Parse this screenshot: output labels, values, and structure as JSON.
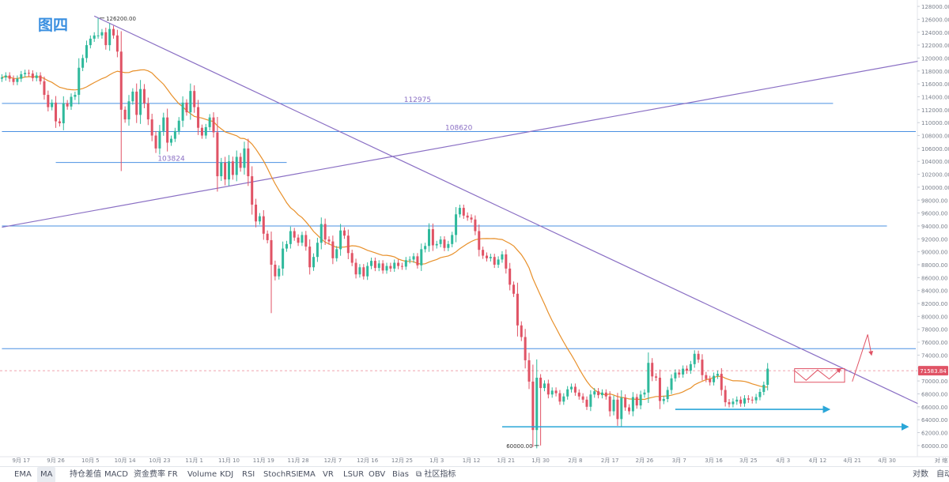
{
  "figure_label": "图四",
  "colors": {
    "up": "#2fb99c",
    "down": "#e05365",
    "ma": "#e8902a",
    "hline": "#4a90e2",
    "trend": "#8a6fc4",
    "current": "#e05365",
    "title": "#3a8fe0",
    "arrow": "#2aa6d8"
  },
  "toolbar": {
    "left_items": [
      "EMA",
      "MA",
      "持仓差值",
      "MACD",
      "资金费率",
      "FR",
      "Volume",
      "KDJ",
      "RSI",
      "StochRSI",
      "EMA",
      "VR",
      "LSUR",
      "OBV",
      "Bias",
      "社区指标"
    ],
    "selected": "MA",
    "right_items": [
      "对数",
      "自动"
    ],
    "axis_corner": "对 缩"
  },
  "chart_data": {
    "type": "candlestick",
    "title": "",
    "xlabel": "",
    "ylabel": "",
    "ylim": [
      59000,
      128500
    ],
    "y_ticks": [
      60000,
      62000,
      64000,
      66000,
      68000,
      70000,
      72000,
      74000,
      76000,
      78000,
      80000,
      82000,
      84000,
      86000,
      88000,
      90000,
      92000,
      94000,
      96000,
      98000,
      100000,
      102000,
      104000,
      106000,
      108000,
      110000,
      112000,
      114000,
      116000,
      118000,
      120000,
      122000,
      124000,
      126000,
      128000
    ],
    "y_tick_labels": [
      "60000.00",
      "62000.00",
      "64000.00",
      "66000.00",
      "68000.00",
      "70000.00",
      "72000.00",
      "74000.00",
      "76000.00",
      "78000.00",
      "80000.00",
      "82000.00",
      "84000.00",
      "86000.00",
      "88000.00",
      "90000.00",
      "92000.00",
      "94000.00",
      "96000.00",
      "98000.00",
      "100000.00",
      "102000.00",
      "104000.00",
      "106000.00",
      "108000.00",
      "110000.00",
      "112000.00",
      "114000.00",
      "116000.00",
      "118000.00",
      "120000.00",
      "122000.00",
      "124000.00",
      "126000.00",
      "128000.00"
    ],
    "x_ticks": [
      {
        "label": "9月 17",
        "i": 5
      },
      {
        "label": "9月 26",
        "i": 14
      },
      {
        "label": "10月 5",
        "i": 23
      },
      {
        "label": "10月 14",
        "i": 32
      },
      {
        "label": "10月 23",
        "i": 41
      },
      {
        "label": "11月 1",
        "i": 50
      },
      {
        "label": "11月 10",
        "i": 59
      },
      {
        "label": "11月 19",
        "i": 68
      },
      {
        "label": "11月 28",
        "i": 77
      },
      {
        "label": "12月 7",
        "i": 86
      },
      {
        "label": "12月 16",
        "i": 95
      },
      {
        "label": "12月 25",
        "i": 104
      },
      {
        "label": "1月 3",
        "i": 113
      },
      {
        "label": "1月 12",
        "i": 122
      },
      {
        "label": "1月 21",
        "i": 131
      },
      {
        "label": "1月 30",
        "i": 140
      },
      {
        "label": "2月 8",
        "i": 149
      },
      {
        "label": "2月 17",
        "i": 158
      },
      {
        "label": "2月 26",
        "i": 167
      },
      {
        "label": "3月 7",
        "i": 176
      },
      {
        "label": "3月 16",
        "i": 185
      },
      {
        "label": "3月 25",
        "i": 194
      },
      {
        "label": "4月 3",
        "i": 203
      },
      {
        "label": "4月 12",
        "i": 212
      },
      {
        "label": "4月 21",
        "i": 221
      },
      {
        "label": "4月 30",
        "i": 230
      }
    ],
    "x_count": 238,
    "candles_start": 0,
    "closes": [
      117000,
      117300,
      116800,
      116300,
      116800,
      117500,
      117700,
      117600,
      116900,
      117300,
      116400,
      114300,
      112400,
      113100,
      110200,
      109900,
      113000,
      112500,
      114000,
      114300,
      118500,
      120000,
      122000,
      123000,
      123500,
      123500,
      124000,
      122000,
      124500,
      123500,
      121000,
      112000,
      110500,
      113300,
      114800,
      111200,
      115200,
      113000,
      110500,
      108000,
      106000,
      108700,
      110800,
      106900,
      107500,
      108700,
      110300,
      113100,
      111600,
      114900,
      112400,
      109200,
      108000,
      109300,
      110800,
      108500,
      101700,
      103800,
      101200,
      104000,
      101900,
      104700,
      103000,
      106000,
      101700,
      97300,
      94700,
      95500,
      92800,
      91800,
      88000,
      86200,
      87400,
      90500,
      91200,
      93200,
      92200,
      91400,
      92600,
      90800,
      87600,
      89200,
      91400,
      94300,
      91900,
      91600,
      89000,
      90400,
      93300,
      92500,
      89800,
      88300,
      86500,
      87600,
      86200,
      87800,
      88600,
      87500,
      88200,
      87100,
      87800,
      87400,
      88300,
      87800,
      87700,
      88700,
      88800,
      89300,
      87900,
      90400,
      90900,
      93500,
      91000,
      91200,
      91900,
      90600,
      91200,
      92600,
      95800,
      96800,
      95600,
      95300,
      95000,
      93200,
      90300,
      89400,
      89000,
      89200,
      88000,
      88800,
      89600,
      87400,
      84900,
      83500,
      78600,
      76800,
      73200,
      69900,
      62400,
      70500,
      68900,
      69600,
      67900,
      68500,
      68100,
      66800,
      67600,
      68700,
      69100,
      68200,
      67600,
      67100,
      66000,
      67900,
      68400,
      67800,
      68200,
      67600,
      65300,
      67100,
      64100,
      67400,
      65900,
      65300,
      67500,
      66200,
      67900,
      68200,
      72800,
      70700,
      70500,
      66900,
      67200,
      68600,
      70400,
      71300,
      71000,
      71900,
      71600,
      72600,
      74200,
      73300,
      70900,
      70300,
      69800,
      70800,
      71100,
      68600,
      66700,
      66400,
      66800,
      67100,
      66500,
      67300,
      67100,
      67000,
      67500,
      68300,
      69400,
      71900
    ],
    "opens": [
      116800,
      117000,
      117300,
      116800,
      116300,
      116800,
      117500,
      117700,
      117600,
      116900,
      117300,
      116400,
      114300,
      112400,
      113100,
      110200,
      109900,
      113000,
      112500,
      114000,
      114300,
      118500,
      120000,
      122000,
      123000,
      123500,
      123500,
      124000,
      122000,
      124500,
      123500,
      121000,
      112000,
      110500,
      113300,
      114800,
      111200,
      115200,
      113000,
      110500,
      108000,
      106000,
      108700,
      110800,
      106900,
      107500,
      108700,
      110300,
      113100,
      111600,
      114900,
      112400,
      109200,
      108000,
      109300,
      110800,
      108500,
      101700,
      103800,
      101200,
      104000,
      101900,
      104700,
      103000,
      106000,
      101700,
      97300,
      94700,
      95500,
      92800,
      91800,
      88000,
      86200,
      87400,
      90500,
      91200,
      93200,
      92200,
      91400,
      92600,
      90800,
      87600,
      89200,
      91400,
      94300,
      91900,
      91600,
      89000,
      90400,
      93300,
      92500,
      89800,
      88300,
      86500,
      87600,
      86200,
      87800,
      88600,
      87500,
      88200,
      87100,
      87800,
      87400,
      88300,
      87800,
      87700,
      88700,
      88800,
      89300,
      87900,
      90400,
      90900,
      93500,
      91000,
      91200,
      91900,
      90600,
      91200,
      92600,
      95800,
      96800,
      95600,
      95300,
      95000,
      93200,
      90300,
      89400,
      89000,
      89200,
      88000,
      88800,
      89600,
      87400,
      84900,
      83500,
      78600,
      76800,
      73200,
      69900,
      62400,
      70500,
      68900,
      69600,
      67900,
      68500,
      68100,
      66800,
      67600,
      68700,
      69100,
      68200,
      67600,
      67100,
      66000,
      67900,
      68400,
      67800,
      68200,
      67600,
      65300,
      67100,
      64100,
      67400,
      65900,
      65300,
      67500,
      66200,
      67900,
      68200,
      72800,
      70700,
      70500,
      66900,
      67200,
      68600,
      70400,
      71300,
      71000,
      71900,
      71600,
      72600,
      74200,
      73300,
      70900,
      70300,
      69800,
      70800,
      71100,
      68600,
      66700,
      66400,
      66800,
      67100,
      66500,
      67300,
      67100,
      67000,
      67500,
      68300,
      69400
    ],
    "extremes": {
      "high": 126200,
      "high_index": 25,
      "low": 60000,
      "low_index": 140
    },
    "ma_label": "MA",
    "horizontal_levels": [
      {
        "value": 112975,
        "label": "112975",
        "from_index": 0,
        "to_index": 216
      },
      {
        "value": 108620,
        "label": "108620",
        "from_index": 0,
        "to_index": 238
      },
      {
        "value": 103824,
        "label": "103824",
        "from_index": 14,
        "to_index": 74
      },
      {
        "value": 94000,
        "label": "",
        "from_index": 0,
        "to_index": 230
      },
      {
        "value": 75000,
        "label": "",
        "from_index": 0,
        "to_index": 238
      }
    ],
    "trendlines": [
      {
        "name": "",
        "from": {
          "i": 24,
          "v": 126500
        },
        "to": {
          "i": 238,
          "v": 66500
        }
      },
      {
        "name": "",
        "from": {
          "i": 0,
          "v": 93800
        },
        "to": {
          "i": 238,
          "v": 119500
        }
      }
    ],
    "support_arrows": [
      {
        "value": 65600,
        "from_index": 175,
        "to_index": 215
      },
      {
        "value": 62900,
        "from_index": 130,
        "to_index": 238
      }
    ],
    "current_price": 71583.84,
    "current_price_label": "71583.84",
    "projection_box": {
      "from_index": 206,
      "to_index": 219,
      "low": 69800,
      "high": 71900
    },
    "projection_path": [
      {
        "i": 206,
        "v": 71600
      },
      {
        "i": 209,
        "v": 70100
      },
      {
        "i": 212,
        "v": 71700
      },
      {
        "i": 215,
        "v": 70300
      },
      {
        "i": 218,
        "v": 71900
      }
    ],
    "projection_breakout": [
      {
        "i": 221,
        "v": 69900
      },
      {
        "i": 225,
        "v": 77200
      },
      {
        "i": 226,
        "v": 74000
      }
    ],
    "grid": false,
    "legend": "none"
  }
}
